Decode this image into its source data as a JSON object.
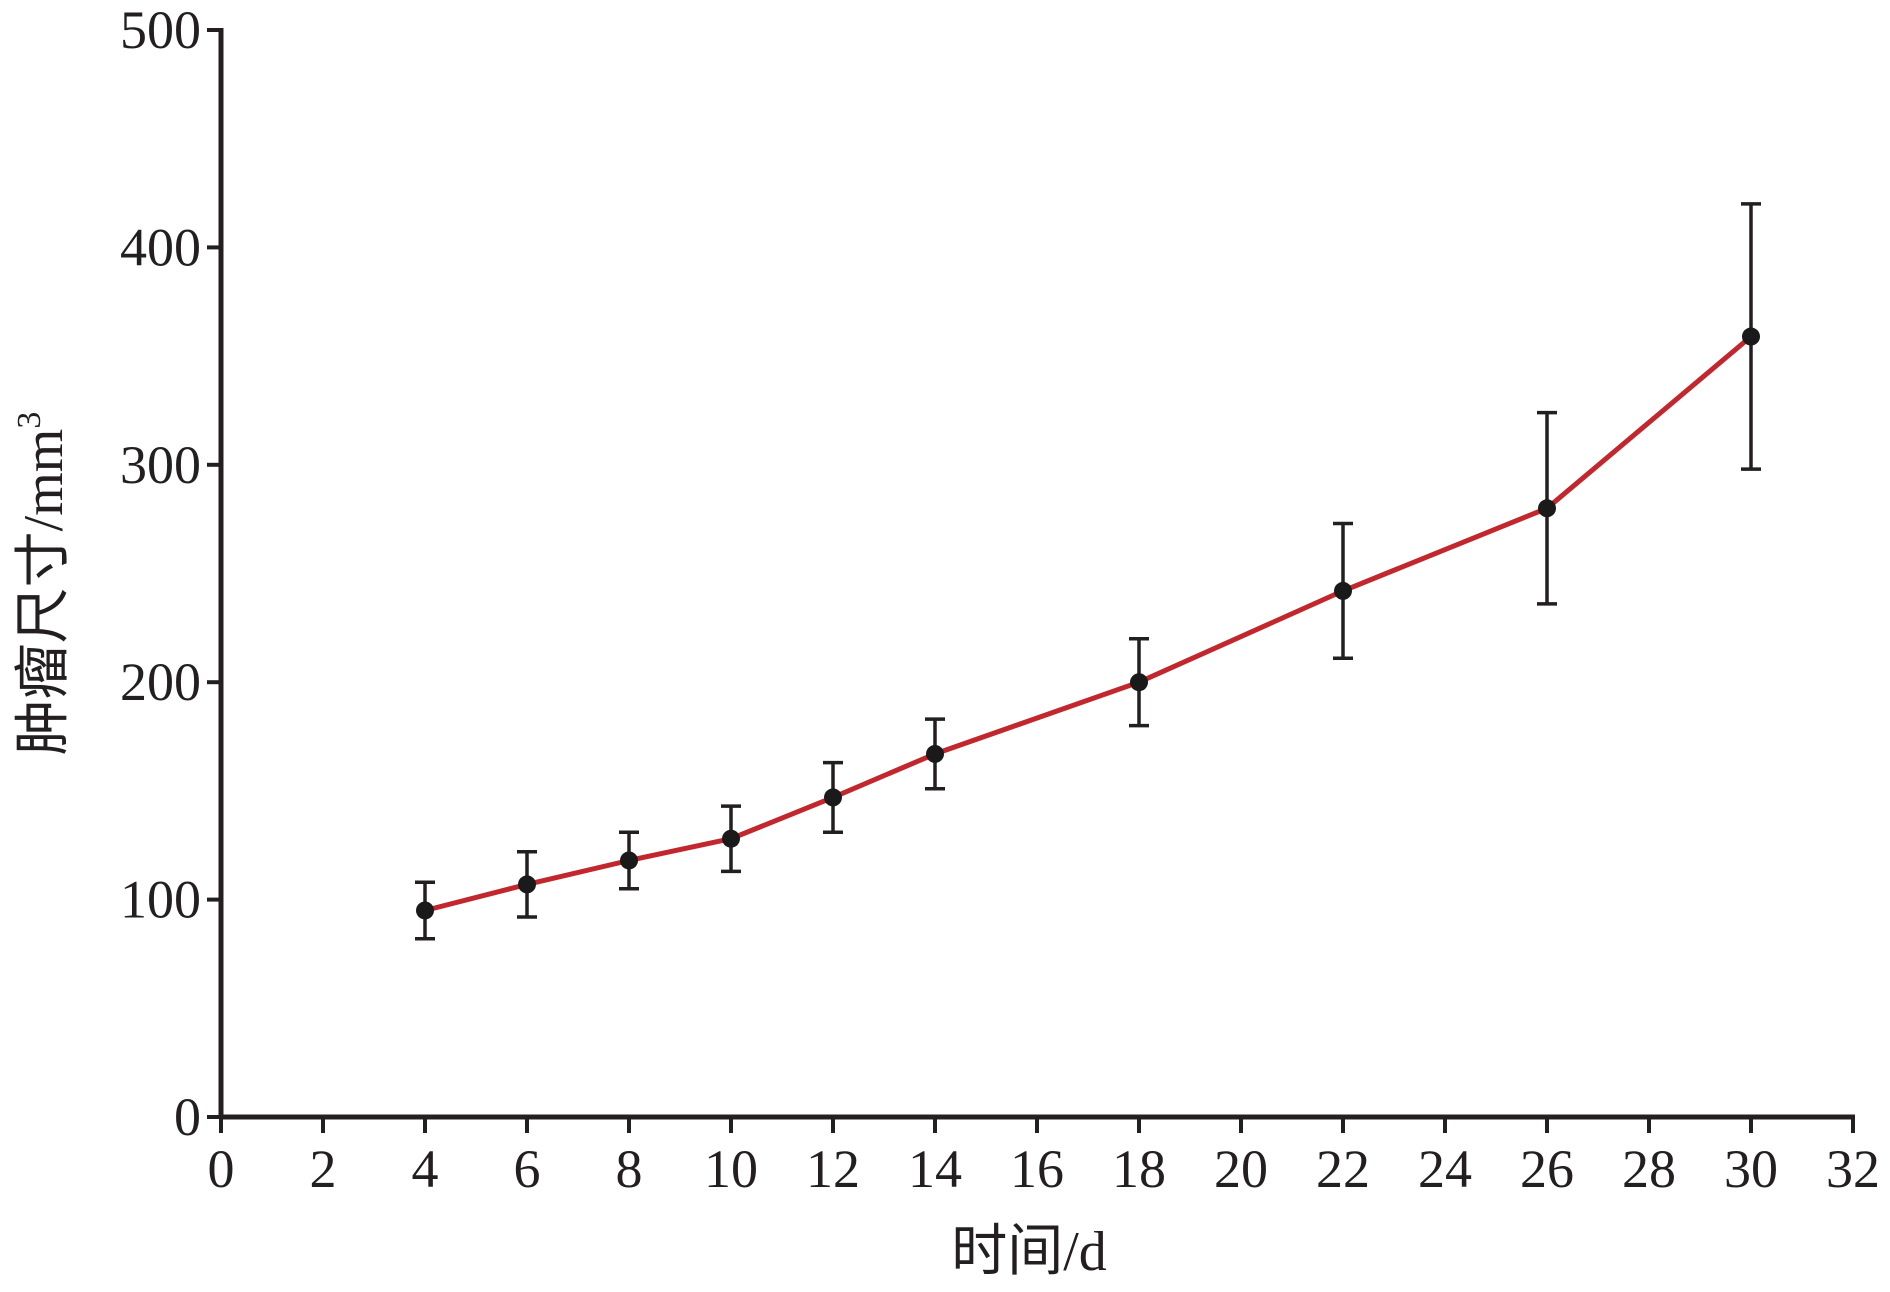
{
  "chart_data": {
    "type": "line",
    "title": "",
    "xlabel": "时间/d",
    "ylabel": "肿瘤尺寸/mm",
    "ylabel_superscript": "3",
    "xlim": [
      0,
      32
    ],
    "ylim": [
      0,
      500
    ],
    "x_ticks": [
      0,
      2,
      4,
      6,
      8,
      10,
      12,
      14,
      16,
      18,
      20,
      22,
      24,
      26,
      28,
      30,
      32
    ],
    "y_ticks": [
      0,
      100,
      200,
      300,
      400,
      500
    ],
    "grid": false,
    "legend": "none",
    "series": [
      {
        "color": "#c1272d",
        "marker_color": "#1a1a1a",
        "x": [
          4,
          6,
          8,
          10,
          12,
          14,
          18,
          22,
          26,
          30
        ],
        "y": [
          95,
          107,
          118,
          128,
          147,
          167,
          200,
          242,
          280,
          359
        ],
        "error": [
          13,
          15,
          13,
          15,
          16,
          16,
          20,
          31,
          44,
          61
        ]
      }
    ]
  }
}
